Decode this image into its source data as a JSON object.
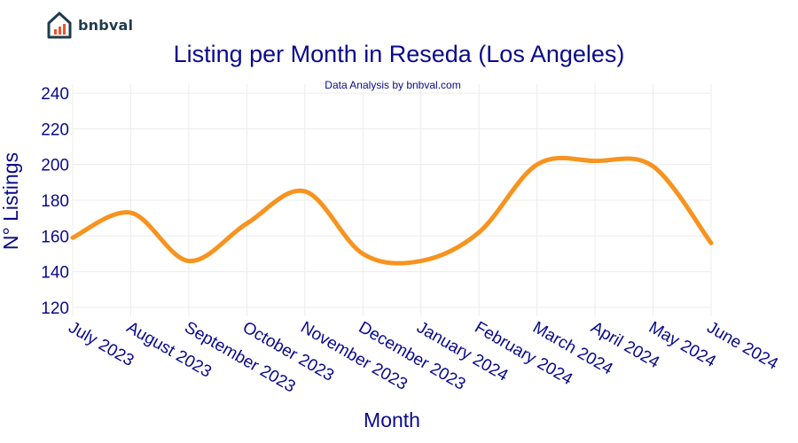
{
  "brand": {
    "name": "bnbval",
    "logo_icon": "house-chart-icon"
  },
  "colors": {
    "line": "#f7931e",
    "text": "#0a0a8c",
    "grid": "#ececec",
    "logo": "#1f3b4d",
    "logo_accent": "#e8542c"
  },
  "chart_data": {
    "type": "line",
    "title": "Listing per Month in Reseda (Los Angeles)",
    "subtitle": "Data Analysis by bnbval.com",
    "xlabel": "Month",
    "ylabel": "N° Listings",
    "ylim": [
      115,
      245
    ],
    "yticks": [
      120,
      140,
      160,
      180,
      200,
      220,
      240
    ],
    "grid": true,
    "categories": [
      "July 2023",
      "August 2023",
      "September 2023",
      "October 2023",
      "November 2023",
      "December 2023",
      "January 2024",
      "February 2024",
      "March 2024",
      "April 2024",
      "May 2024",
      "June 2024"
    ],
    "series": [
      {
        "values": [
          159,
          173,
          146,
          167,
          185,
          150,
          146,
          162,
          200,
          202,
          199,
          156
        ]
      }
    ]
  }
}
